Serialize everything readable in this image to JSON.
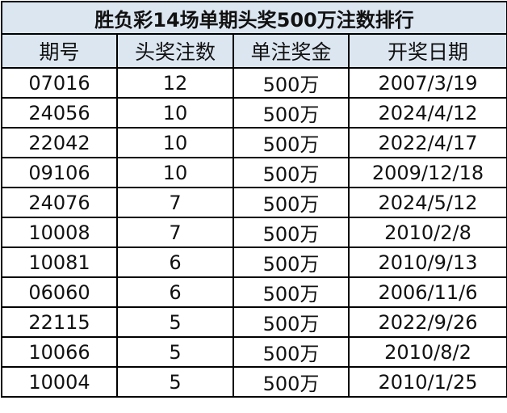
{
  "title": "胜负彩14场单期头奖500万注数排行",
  "colors": {
    "header_bg": "#dce6f1",
    "border": "#000000"
  },
  "columns": [
    "期号",
    "头奖注数",
    "单注奖金",
    "开奖日期"
  ],
  "rows": [
    [
      "07016",
      "12",
      "500万",
      "2007/3/19"
    ],
    [
      "24056",
      "10",
      "500万",
      "2024/4/12"
    ],
    [
      "22042",
      "10",
      "500万",
      "2022/4/17"
    ],
    [
      "09106",
      "10",
      "500万",
      "2009/12/18"
    ],
    [
      "24076",
      "7",
      "500万",
      "2024/5/12"
    ],
    [
      "10008",
      "7",
      "500万",
      "2010/2/8"
    ],
    [
      "10081",
      "6",
      "500万",
      "2010/9/13"
    ],
    [
      "06060",
      "6",
      "500万",
      "2006/11/6"
    ],
    [
      "22115",
      "5",
      "500万",
      "2022/9/26"
    ],
    [
      "10066",
      "5",
      "500万",
      "2010/8/2"
    ],
    [
      "10004",
      "5",
      "500万",
      "2010/1/25"
    ]
  ]
}
